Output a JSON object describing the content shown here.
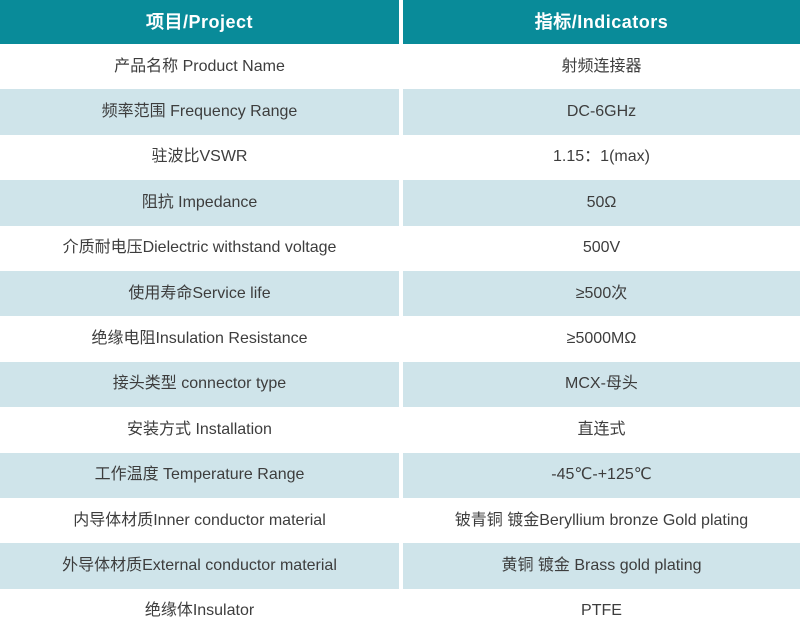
{
  "table": {
    "header": {
      "project": "项目/Project",
      "indicators": "指标/Indicators"
    },
    "rows": [
      {
        "project": "产品名称 Product Name",
        "indicator": "射频连接器"
      },
      {
        "project": "频率范围 Frequency Range",
        "indicator": "DC-6GHz"
      },
      {
        "project": "驻波比VSWR",
        "indicator": "1.15：1(max)"
      },
      {
        "project": "阻抗 Impedance",
        "indicator": "50Ω"
      },
      {
        "project": "介质耐电压Dielectric withstand voltage",
        "indicator": "500V"
      },
      {
        "project": "使用寿命Service life",
        "indicator": "≥500次"
      },
      {
        "project": "绝缘电阻Insulation Resistance",
        "indicator": "≥5000MΩ"
      },
      {
        "project": "接头类型 connector type",
        "indicator": "MCX-母头"
      },
      {
        "project": "安装方式 Installation",
        "indicator": "直连式"
      },
      {
        "project": "工作温度 Temperature Range",
        "indicator": "-45℃-+125℃"
      },
      {
        "project": "内导体材质Inner conductor material",
        "indicator": "铍青铜 镀金Beryllium bronze Gold plating"
      },
      {
        "project": "外导体材质External conductor material",
        "indicator": "黄铜 镀金 Brass gold plating"
      },
      {
        "project": "绝缘体Insulator",
        "indicator": "PTFE"
      }
    ],
    "colors": {
      "header_bg": "#098b99",
      "header_text": "#ffffff",
      "row_alt_bg": "#cfe4ea",
      "text": "#3d3d3d"
    }
  }
}
